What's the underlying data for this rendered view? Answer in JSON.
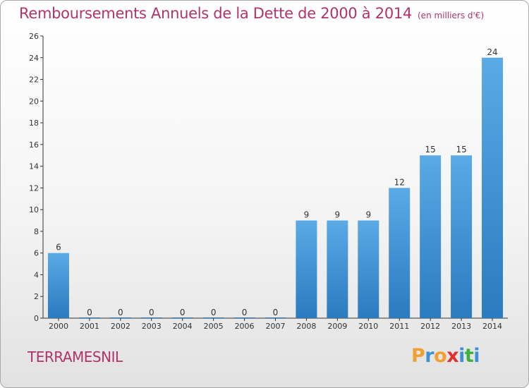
{
  "title": "Remboursements Annuels de la Dette de 2000 à 2014",
  "unit_label": "(en milliers d'€)",
  "town": "TERRAMESNIL",
  "logo": {
    "text": "Proxiti",
    "letters": [
      "P",
      "r",
      "o",
      "x",
      "i",
      "t",
      "i"
    ],
    "colors": [
      "#f0a030",
      "#3d8fd6",
      "#f0a030",
      "#e03030",
      "#3d8fd6",
      "#3db03d",
      "#3d8fd6"
    ]
  },
  "colors": {
    "title": "#b0336a",
    "bar_top": "#5aaae6",
    "bar_bottom": "#2a7bbf",
    "axis": "#333333"
  },
  "chart_data": {
    "type": "bar",
    "title": "Remboursements Annuels de la Dette de 2000 à 2014",
    "unit": "(en milliers d'€)",
    "categories": [
      "2000",
      "2001",
      "2002",
      "2003",
      "2004",
      "2005",
      "2006",
      "2007",
      "2008",
      "2009",
      "2010",
      "2011",
      "2012",
      "2013",
      "2014"
    ],
    "values": [
      6,
      0,
      0,
      0,
      0,
      0,
      0,
      0,
      9,
      9,
      9,
      12,
      15,
      15,
      24
    ],
    "data_labels": [
      "6",
      "0",
      "0",
      "0",
      "0",
      "0",
      "0",
      "0",
      "9",
      "9",
      "9",
      "12",
      "15",
      "15",
      "24"
    ],
    "ylim": [
      0,
      26
    ],
    "yticks": [
      "0",
      "2",
      "4",
      "6",
      "8",
      "10",
      "12",
      "14",
      "16",
      "18",
      "20",
      "22",
      "24",
      "26"
    ],
    "grid": false,
    "legend": "none"
  }
}
